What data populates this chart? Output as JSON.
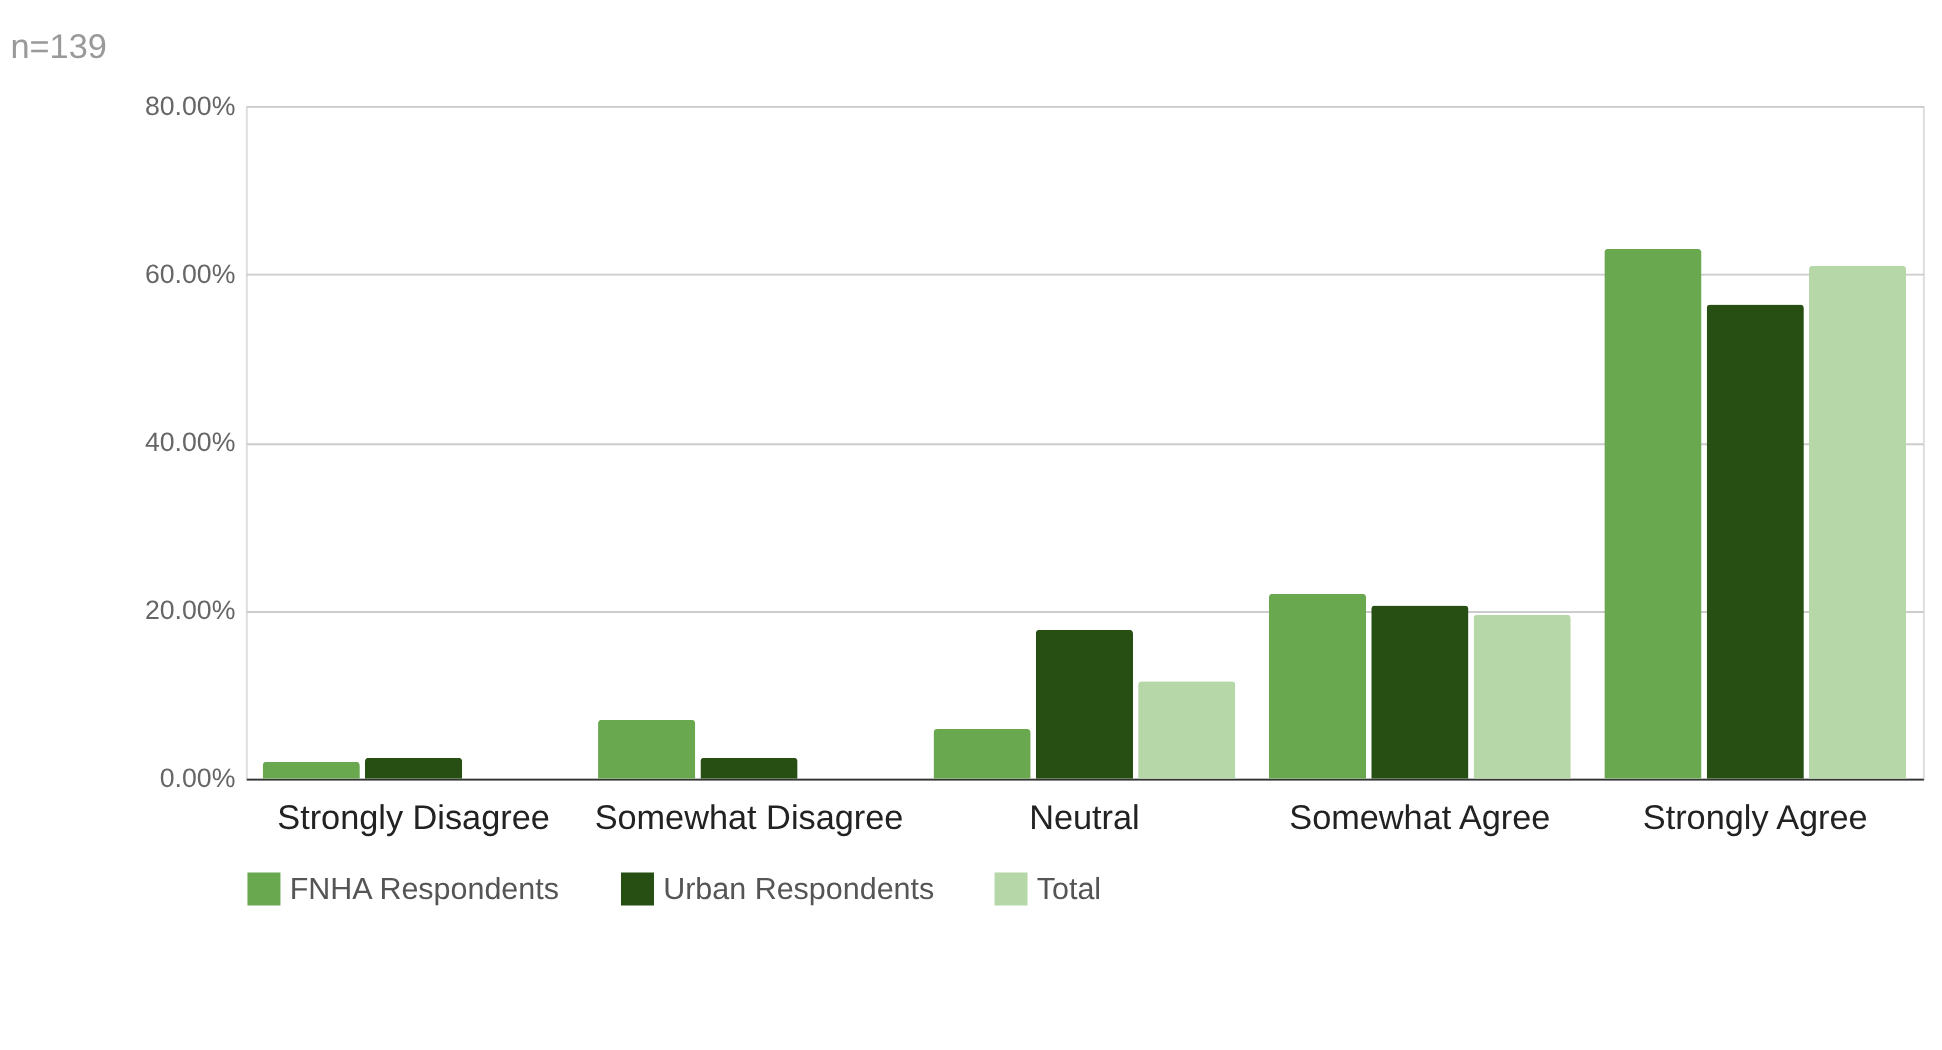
{
  "chart_data": {
    "type": "bar",
    "title": "n=139",
    "categories": [
      "Strongly Disagree",
      "Somewhat Disagree",
      "Neutral",
      "Somewhat Agree",
      "Strongly Agree"
    ],
    "series": [
      {
        "name": "FNHA Respondents",
        "color": "#6aa84f",
        "values": [
          2.0,
          7.0,
          5.9,
          22.0,
          63.0
        ]
      },
      {
        "name": "Urban Respondents",
        "color": "#274e13",
        "values": [
          2.5,
          2.5,
          17.7,
          20.6,
          56.4
        ]
      },
      {
        "name": "Total",
        "color": "#b6d7a8",
        "values": [
          null,
          null,
          11.6,
          19.5,
          61.0
        ]
      }
    ],
    "ylim": [
      0,
      80
    ],
    "yticks": [
      {
        "value": 0,
        "label": "0.00%"
      },
      {
        "value": 20,
        "label": "20.00%"
      },
      {
        "value": 40,
        "label": "40.00%"
      },
      {
        "value": 60,
        "label": "60.00%"
      },
      {
        "value": 80,
        "label": "80.00%"
      }
    ],
    "grid": "y",
    "legend": "bottom"
  }
}
